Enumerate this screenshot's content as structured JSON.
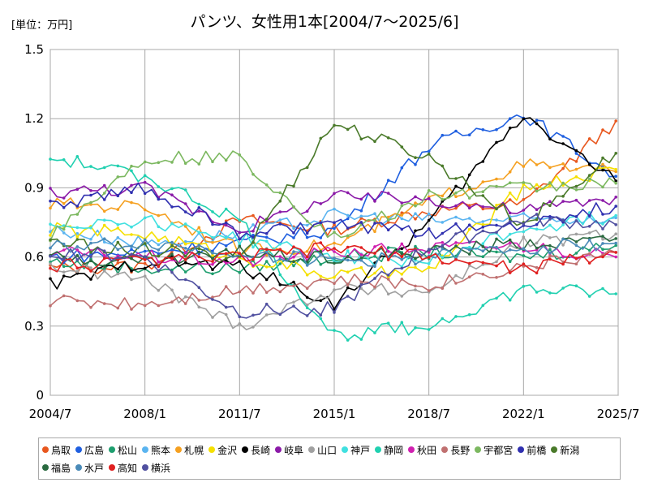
{
  "header": {
    "unit_label": "[単位：万円]",
    "title": "パンツ、女性用1本[2004/7～2025/6]"
  },
  "chart_data": {
    "type": "line",
    "title": "パンツ、女性用1本[2004/7～2025/6]",
    "unit": "[単位：万円]",
    "ylim": [
      0,
      1.5
    ],
    "y_ticks": [
      "0",
      "0.3",
      "0.6",
      "0.9",
      "1.2",
      "1.5"
    ],
    "x_range": [
      "2004/7",
      "2025/7"
    ],
    "x_ticks": [
      "2004/7",
      "2008/1",
      "2011/7",
      "2015/1",
      "2018/7",
      "2022/1",
      "2025/7"
    ],
    "grid": true,
    "legend_position": "bottom",
    "series": [
      {
        "name": "鳥取",
        "color": "#e8571e",
        "points": [
          [
            "2004/7",
            0.55
          ],
          [
            "2008/1",
            0.56
          ],
          [
            "2011/7",
            0.76
          ],
          [
            "2015/1",
            0.72
          ],
          [
            "2018/7",
            0.8
          ],
          [
            "2022/1",
            0.83
          ],
          [
            "2025/6",
            1.19
          ]
        ]
      },
      {
        "name": "広島",
        "color": "#1f5fe0",
        "points": [
          [
            "2004/7",
            0.6
          ],
          [
            "2008/1",
            0.62
          ],
          [
            "2011/7",
            0.66
          ],
          [
            "2015/1",
            0.72
          ],
          [
            "2018/7",
            1.08
          ],
          [
            "2022/1",
            1.22
          ],
          [
            "2025/6",
            0.95
          ]
        ]
      },
      {
        "name": "松山",
        "color": "#1e9e6e",
        "points": [
          [
            "2004/7",
            0.58
          ],
          [
            "2008/1",
            0.55
          ],
          [
            "2011/7",
            0.55
          ],
          [
            "2015/1",
            0.6
          ],
          [
            "2018/7",
            0.62
          ],
          [
            "2022/1",
            0.6
          ],
          [
            "2025/6",
            0.65
          ]
        ]
      },
      {
        "name": "熊本",
        "color": "#5ab4f0",
        "points": [
          [
            "2004/7",
            0.72
          ],
          [
            "2008/1",
            0.66
          ],
          [
            "2011/7",
            0.7
          ],
          [
            "2015/1",
            0.78
          ],
          [
            "2018/7",
            0.76
          ],
          [
            "2022/1",
            0.76
          ],
          [
            "2025/6",
            0.77
          ]
        ]
      },
      {
        "name": "札幌",
        "color": "#f5a020",
        "points": [
          [
            "2004/7",
            0.83
          ],
          [
            "2008/1",
            0.82
          ],
          [
            "2011/7",
            0.63
          ],
          [
            "2015/1",
            0.65
          ],
          [
            "2018/7",
            0.84
          ],
          [
            "2022/1",
            1.0
          ],
          [
            "2025/6",
            0.97
          ]
        ]
      },
      {
        "name": "金沢",
        "color": "#f5e000",
        "points": [
          [
            "2004/7",
            0.72
          ],
          [
            "2008/1",
            0.7
          ],
          [
            "2011/7",
            0.6
          ],
          [
            "2015/1",
            0.52
          ],
          [
            "2018/7",
            0.54
          ],
          [
            "2022/1",
            0.9
          ],
          [
            "2025/6",
            0.98
          ]
        ]
      },
      {
        "name": "長崎",
        "color": "#000000",
        "points": [
          [
            "2004/7",
            0.48
          ],
          [
            "2008/1",
            0.58
          ],
          [
            "2011/7",
            0.56
          ],
          [
            "2015/1",
            0.4
          ],
          [
            "2018/7",
            0.75
          ],
          [
            "2022/1",
            1.22
          ],
          [
            "2025/6",
            0.93
          ]
        ]
      },
      {
        "name": "岐阜",
        "color": "#8b1aa8",
        "points": [
          [
            "2004/7",
            0.88
          ],
          [
            "2008/1",
            0.9
          ],
          [
            "2011/7",
            0.72
          ],
          [
            "2015/1",
            0.86
          ],
          [
            "2018/7",
            0.85
          ],
          [
            "2022/1",
            0.8
          ],
          [
            "2025/6",
            0.86
          ]
        ]
      },
      {
        "name": "山口",
        "color": "#a0a0a0",
        "points": [
          [
            "2004/7",
            0.56
          ],
          [
            "2008/1",
            0.5
          ],
          [
            "2011/7",
            0.3
          ],
          [
            "2015/1",
            0.46
          ],
          [
            "2018/7",
            0.45
          ],
          [
            "2022/1",
            0.66
          ],
          [
            "2025/6",
            0.7
          ]
        ]
      },
      {
        "name": "神戸",
        "color": "#40e0e0",
        "points": [
          [
            "2004/7",
            0.74
          ],
          [
            "2008/1",
            0.76
          ],
          [
            "2011/7",
            0.68
          ],
          [
            "2015/1",
            0.6
          ],
          [
            "2018/7",
            0.58
          ],
          [
            "2022/1",
            0.72
          ],
          [
            "2025/6",
            0.78
          ]
        ]
      },
      {
        "name": "静岡",
        "color": "#20d0b0",
        "points": [
          [
            "2004/7",
            1.03
          ],
          [
            "2008/1",
            0.95
          ],
          [
            "2011/7",
            0.76
          ],
          [
            "2015/1",
            0.26
          ],
          [
            "2018/7",
            0.3
          ],
          [
            "2022/1",
            0.46
          ],
          [
            "2025/6",
            0.44
          ]
        ]
      },
      {
        "name": "秋田",
        "color": "#d020b0",
        "points": [
          [
            "2004/7",
            0.62
          ],
          [
            "2008/1",
            0.6
          ],
          [
            "2011/7",
            0.58
          ],
          [
            "2015/1",
            0.62
          ],
          [
            "2018/7",
            0.64
          ],
          [
            "2022/1",
            0.65
          ],
          [
            "2025/6",
            0.6
          ]
        ]
      },
      {
        "name": "長野",
        "color": "#c07070",
        "points": [
          [
            "2004/7",
            0.41
          ],
          [
            "2008/1",
            0.4
          ],
          [
            "2011/7",
            0.46
          ],
          [
            "2015/1",
            0.5
          ],
          [
            "2018/7",
            0.48
          ],
          [
            "2022/1",
            0.56
          ],
          [
            "2025/6",
            0.62
          ]
        ]
      },
      {
        "name": "宇都宮",
        "color": "#7cb860",
        "points": [
          [
            "2004/7",
            0.7
          ],
          [
            "2008/1",
            1.03
          ],
          [
            "2011/7",
            1.03
          ],
          [
            "2015/1",
            0.68
          ],
          [
            "2018/7",
            0.86
          ],
          [
            "2022/1",
            0.9
          ],
          [
            "2025/6",
            0.92
          ]
        ]
      },
      {
        "name": "前橋",
        "color": "#3030b0",
        "points": [
          [
            "2004/7",
            0.82
          ],
          [
            "2008/1",
            0.9
          ],
          [
            "2011/7",
            0.7
          ],
          [
            "2015/1",
            0.74
          ],
          [
            "2018/7",
            0.7
          ],
          [
            "2022/1",
            0.75
          ],
          [
            "2025/6",
            0.82
          ]
        ]
      },
      {
        "name": "新潟",
        "color": "#4a7a2a",
        "points": [
          [
            "2004/7",
            0.66
          ],
          [
            "2008/1",
            0.63
          ],
          [
            "2011/7",
            0.6
          ],
          [
            "2015/1",
            1.18
          ],
          [
            "2018/7",
            1.03
          ],
          [
            "2022/1",
            0.74
          ],
          [
            "2025/6",
            1.05
          ]
        ]
      },
      {
        "name": "福島",
        "color": "#2a6a40",
        "points": [
          [
            "2004/7",
            0.6
          ],
          [
            "2008/1",
            0.58
          ],
          [
            "2011/7",
            0.62
          ],
          [
            "2015/1",
            0.6
          ],
          [
            "2018/7",
            0.62
          ],
          [
            "2022/1",
            0.66
          ],
          [
            "2025/6",
            0.68
          ]
        ]
      },
      {
        "name": "水戸",
        "color": "#4a8ab8",
        "points": [
          [
            "2004/7",
            0.64
          ],
          [
            "2008/1",
            0.66
          ],
          [
            "2011/7",
            0.62
          ],
          [
            "2015/1",
            0.58
          ],
          [
            "2018/7",
            0.6
          ],
          [
            "2022/1",
            0.64
          ],
          [
            "2025/6",
            0.66
          ]
        ]
      },
      {
        "name": "高知",
        "color": "#e02020",
        "points": [
          [
            "2004/7",
            0.56
          ],
          [
            "2008/1",
            0.58
          ],
          [
            "2011/7",
            0.6
          ],
          [
            "2015/1",
            0.64
          ],
          [
            "2018/7",
            0.6
          ],
          [
            "2022/1",
            0.55
          ],
          [
            "2025/6",
            0.62
          ]
        ]
      },
      {
        "name": "横浜",
        "color": "#5050a0",
        "points": [
          [
            "2004/7",
            0.62
          ],
          [
            "2008/1",
            0.6
          ],
          [
            "2011/7",
            0.36
          ],
          [
            "2015/1",
            0.38
          ],
          [
            "2018/7",
            0.64
          ],
          [
            "2022/1",
            0.76
          ],
          [
            "2025/6",
            0.74
          ]
        ]
      }
    ]
  }
}
